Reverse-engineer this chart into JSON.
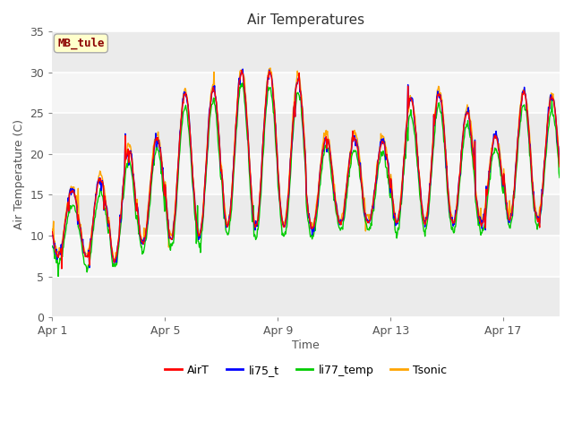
{
  "title": "Air Temperatures",
  "xlabel": "Time",
  "ylabel": "Air Temperature (C)",
  "ylim": [
    0,
    35
  ],
  "yticks": [
    0,
    5,
    10,
    15,
    20,
    25,
    30,
    35
  ],
  "x_tick_labels": [
    "Apr 1",
    "Apr 5",
    "Apr 9",
    "Apr 13",
    "Apr 17"
  ],
  "x_tick_positions": [
    0,
    4,
    8,
    12,
    16
  ],
  "annotation_text": "MB_tule",
  "annotation_color": "#8B0000",
  "annotation_bg": "#FFFFCC",
  "annotation_edge": "#AAAAAA",
  "line_colors": {
    "AirT": "#FF0000",
    "li75_t": "#0000FF",
    "li77_temp": "#00CC00",
    "Tsonic": "#FFA500"
  },
  "line_width": 1.0,
  "plot_bg": "#EBEBEB",
  "band_bg": "#F5F5F5",
  "grid_color": "#FFFFFF",
  "total_days": 18,
  "points_per_day": 48,
  "night_temps": [
    7.5,
    7.2,
    7.0,
    9.0,
    9.5,
    10.0,
    11.0,
    11.0,
    11.0,
    11.0,
    11.5,
    11.5,
    11.5,
    11.5,
    11.5,
    11.5,
    12.0,
    12.0
  ],
  "day_temps": [
    15.5,
    17.0,
    20.5,
    22.0,
    27.5,
    28.0,
    30.0,
    30.0,
    29.0,
    22.0,
    22.0,
    21.5,
    26.5,
    27.5,
    25.0,
    22.0,
    27.5,
    27.0
  ],
  "legend_labels": [
    "AirT",
    "li75_t",
    "li77_temp",
    "Tsonic"
  ]
}
